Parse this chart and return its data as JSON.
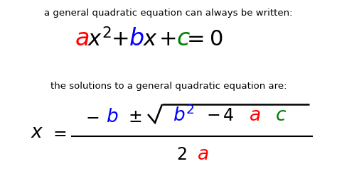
{
  "bg_color": "#ffffff",
  "text1": "a general quadratic equation can always be written:",
  "text3": "the solutions to a general quadratic equation are:",
  "text_color": "#000000",
  "text_fontsize": 9.5,
  "color_a": "#ff0000",
  "color_b": "#0000ff",
  "color_c": "#008000",
  "color_black": "#000000",
  "eq1_fontsize": 22,
  "eq2_fontsize": 17
}
